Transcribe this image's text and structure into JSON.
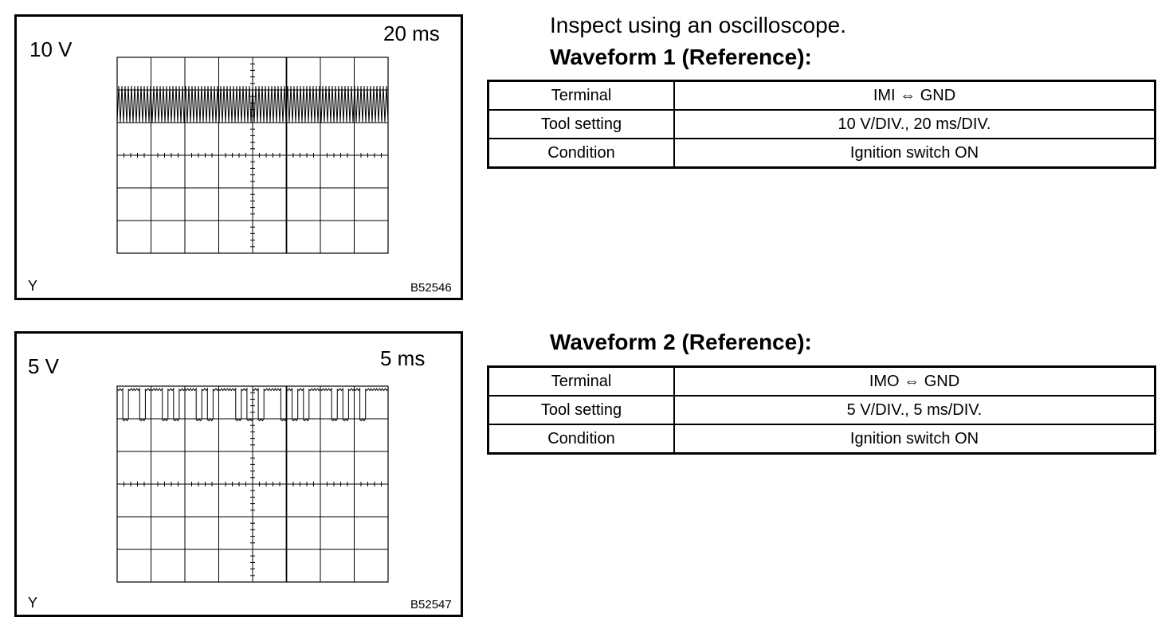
{
  "intro": "Inspect using an oscilloscope.",
  "waveforms": [
    {
      "title": "Waveform 1 (Reference):",
      "scope": {
        "volt_label": "10 V",
        "time_label": "20 ms",
        "y_label": "Y",
        "figure_id": "B52546"
      },
      "rows": [
        {
          "label": "Terminal",
          "value": "IMI ⇔ GND"
        },
        {
          "label": "Tool setting",
          "value": "10 V/DIV., 20 ms/DIV."
        },
        {
          "label": "Condition",
          "value": "Ignition switch ON"
        }
      ]
    },
    {
      "title": "Waveform 2 (Reference):",
      "scope": {
        "volt_label": "5 V",
        "time_label": "5 ms",
        "y_label": "Y",
        "figure_id": "B52547"
      },
      "rows": [
        {
          "label": "Terminal",
          "value": "IMO ⇔ GND"
        },
        {
          "label": "Tool setting",
          "value": "5 V/DIV., 5 ms/DIV."
        },
        {
          "label": "Condition",
          "value": "Ignition switch ON"
        }
      ]
    }
  ]
}
